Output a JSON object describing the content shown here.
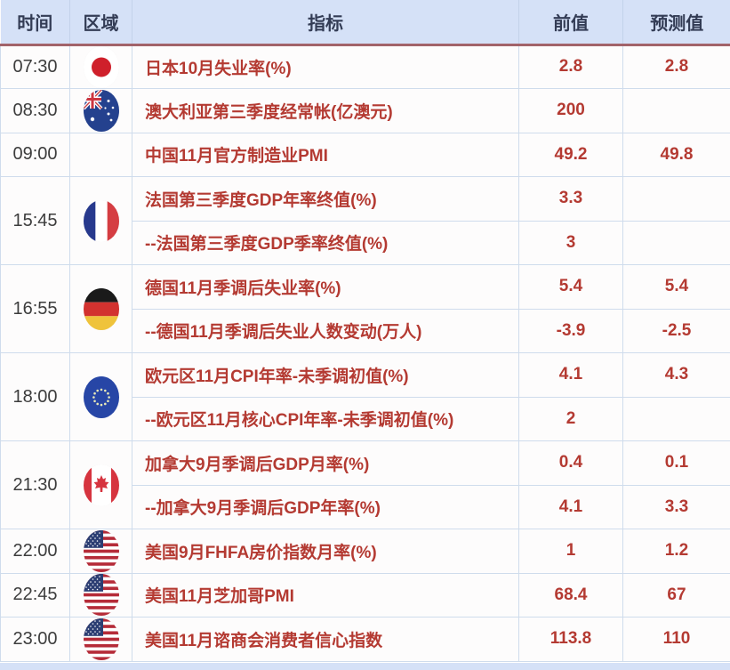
{
  "colors": {
    "header_bg": "#d5e1f7",
    "header_text": "#333c55",
    "header_underline": "#a2636a",
    "row_bg": "#fdfcfc",
    "grid_line": "#cfdcec",
    "accent_red": "#b43a32",
    "time_text": "#3c3c3c",
    "footer_bg": "#d5e1f7"
  },
  "table": {
    "header": {
      "time": "时间",
      "region": "区域",
      "indicator": "指标",
      "previous": "前值",
      "forecast": "预测值"
    },
    "groups": [
      {
        "time": "07:30",
        "flag": "japan",
        "rows": [
          {
            "indicator": "日本10月失业率(%)",
            "previous": "2.8",
            "forecast": "2.8"
          }
        ]
      },
      {
        "time": "08:30",
        "flag": "australia",
        "rows": [
          {
            "indicator": "澳大利亚第三季度经常帐(亿澳元)",
            "previous": "200",
            "forecast": ""
          }
        ]
      },
      {
        "time": "09:00",
        "flag": "",
        "rows": [
          {
            "indicator": "中国11月官方制造业PMI",
            "previous": "49.2",
            "forecast": "49.8"
          }
        ]
      },
      {
        "time": "15:45",
        "flag": "france",
        "rows": [
          {
            "indicator": "法国第三季度GDP年率终值(%)",
            "previous": "3.3",
            "forecast": ""
          },
          {
            "indicator": "--法国第三季度GDP季率终值(%)",
            "previous": "3",
            "forecast": ""
          }
        ]
      },
      {
        "time": "16:55",
        "flag": "germany",
        "rows": [
          {
            "indicator": "德国11月季调后失业率(%)",
            "previous": "5.4",
            "forecast": "5.4"
          },
          {
            "indicator": "--德国11月季调后失业人数变动(万人)",
            "previous": "-3.9",
            "forecast": "-2.5"
          }
        ]
      },
      {
        "time": "18:00",
        "flag": "eu",
        "rows": [
          {
            "indicator": "欧元区11月CPI年率-未季调初值(%)",
            "previous": "4.1",
            "forecast": "4.3"
          },
          {
            "indicator": "--欧元区11月核心CPI年率-未季调初值(%)",
            "previous": "2",
            "forecast": ""
          }
        ]
      },
      {
        "time": "21:30",
        "flag": "canada",
        "rows": [
          {
            "indicator": "加拿大9月季调后GDP月率(%)",
            "previous": "0.4",
            "forecast": "0.1"
          },
          {
            "indicator": "--加拿大9月季调后GDP年率(%)",
            "previous": "4.1",
            "forecast": "3.3"
          }
        ]
      },
      {
        "time": "22:00",
        "flag": "usa",
        "rows": [
          {
            "indicator": "美国9月FHFA房价指数月率(%)",
            "previous": "1",
            "forecast": "1.2"
          }
        ]
      },
      {
        "time": "22:45",
        "flag": "usa",
        "rows": [
          {
            "indicator": "美国11月芝加哥PMI",
            "previous": "68.4",
            "forecast": "67"
          }
        ]
      },
      {
        "time": "23:00",
        "flag": "usa",
        "rows": [
          {
            "indicator": "美国11月谘商会消费者信心指数",
            "previous": "113.8",
            "forecast": "110"
          }
        ]
      }
    ]
  }
}
